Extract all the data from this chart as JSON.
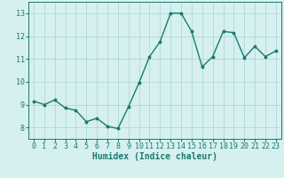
{
  "x": [
    0,
    1,
    2,
    3,
    4,
    5,
    6,
    7,
    8,
    9,
    10,
    11,
    12,
    13,
    14,
    15,
    16,
    17,
    18,
    19,
    20,
    21,
    22,
    23
  ],
  "y": [
    9.15,
    9.0,
    9.2,
    8.85,
    8.75,
    8.25,
    8.4,
    8.05,
    7.95,
    8.9,
    9.95,
    11.1,
    11.75,
    13.0,
    13.0,
    12.2,
    10.65,
    11.1,
    12.2,
    12.15,
    11.05,
    11.55,
    11.1,
    11.35
  ],
  "line_color": "#1a7a6e",
  "marker": "o",
  "marker_size": 1.8,
  "linewidth": 1.0,
  "bg_color": "#d6f0f0",
  "grid_color": "#b0d8d8",
  "xlabel": "Humidex (Indice chaleur)",
  "xlabel_fontsize": 7,
  "tick_fontsize": 6,
  "xlim": [
    -0.5,
    23.5
  ],
  "ylim": [
    7.5,
    13.5
  ],
  "yticks": [
    8,
    9,
    10,
    11,
    12,
    13
  ],
  "xticks": [
    0,
    1,
    2,
    3,
    4,
    5,
    6,
    7,
    8,
    9,
    10,
    11,
    12,
    13,
    14,
    15,
    16,
    17,
    18,
    19,
    20,
    21,
    22,
    23
  ]
}
